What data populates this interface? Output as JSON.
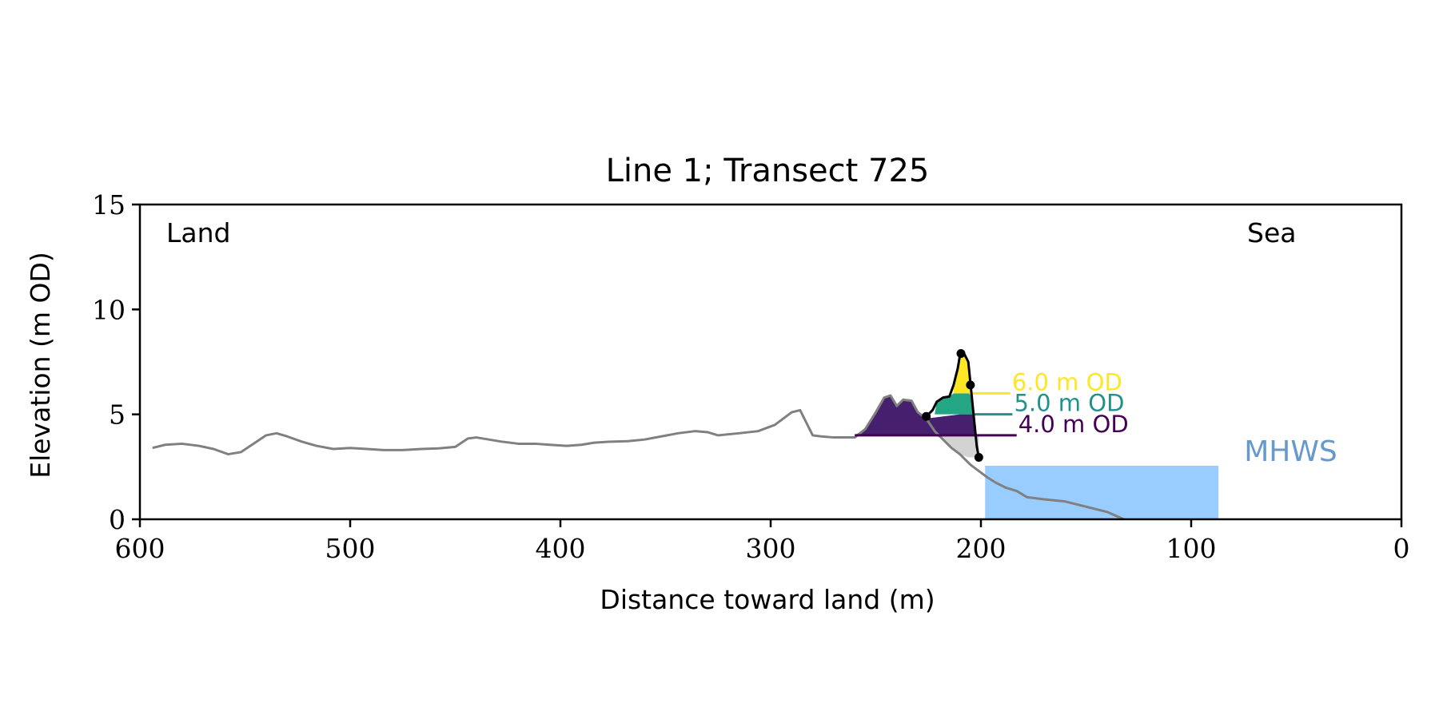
{
  "chart_data": {
    "type": "line",
    "title": "Line 1; Transect 725",
    "xlabel": "Distance toward land (m)",
    "ylabel": "Elevation (m OD)",
    "xlim": [
      600,
      0
    ],
    "ylim": [
      0,
      15
    ],
    "xticks": [
      600,
      500,
      400,
      300,
      200,
      100,
      0
    ],
    "yticks": [
      0,
      5,
      10,
      15
    ],
    "grid": false,
    "annotations": {
      "left": "Land",
      "right": "Sea"
    },
    "colors": {
      "profile": "#808080",
      "dune": "#000000",
      "level_6": "#fde725",
      "level_5": "#21918c",
      "level_4": "#440154",
      "mhws": "#99ccff",
      "mhws_label": "#6699cc",
      "toe_fill": "#d3d3d3"
    },
    "profile": {
      "x": [
        594,
        588,
        580,
        572,
        565,
        558,
        552,
        546,
        540,
        535,
        530,
        523,
        516,
        508,
        500,
        492,
        484,
        475,
        466,
        458,
        450,
        444,
        440,
        434,
        428,
        420,
        412,
        405,
        397,
        390,
        384,
        376,
        368,
        360,
        352,
        344,
        336,
        330,
        325,
        320,
        315,
        306,
        298,
        290,
        286,
        283,
        280,
        276,
        270,
        260,
        255,
        250,
        246,
        243,
        240,
        237,
        233,
        230,
        226,
        222,
        218,
        214,
        210,
        205,
        201,
        197,
        193,
        188,
        183,
        178,
        170,
        160,
        150,
        140,
        132
      ],
      "y": [
        3.4,
        3.55,
        3.6,
        3.5,
        3.35,
        3.1,
        3.2,
        3.6,
        4.0,
        4.1,
        3.95,
        3.7,
        3.5,
        3.35,
        3.4,
        3.35,
        3.3,
        3.3,
        3.35,
        3.38,
        3.45,
        3.85,
        3.9,
        3.8,
        3.7,
        3.6,
        3.6,
        3.55,
        3.5,
        3.55,
        3.65,
        3.7,
        3.72,
        3.8,
        3.95,
        4.1,
        4.2,
        4.15,
        4.0,
        4.05,
        4.1,
        4.2,
        4.5,
        5.1,
        5.2,
        4.6,
        4.0,
        3.95,
        3.9,
        3.9,
        4.3,
        5.1,
        5.8,
        5.9,
        5.4,
        5.7,
        5.65,
        5.1,
        4.8,
        4.2,
        3.8,
        3.4,
        3.1,
        2.6,
        2.3,
        2.0,
        1.75,
        1.5,
        1.35,
        1.05,
        0.95,
        0.85,
        0.6,
        0.35,
        0.0
      ]
    },
    "dune_line": {
      "x": [
        226,
        223,
        221,
        218,
        215,
        213,
        211,
        210,
        208,
        206,
        205,
        204,
        203,
        202,
        201
      ],
      "y": [
        4.9,
        5.2,
        5.6,
        5.8,
        5.85,
        6.4,
        7.2,
        7.8,
        7.9,
        7.5,
        6.5,
        5.5,
        4.5,
        3.5,
        2.95
      ]
    },
    "dune_points": [
      {
        "x": 226,
        "y": 4.9
      },
      {
        "x": 209.5,
        "y": 7.9
      },
      {
        "x": 205,
        "y": 6.4
      },
      {
        "x": 201,
        "y": 2.95
      }
    ],
    "levels": [
      {
        "label": "6.0 m OD",
        "value": 6.0,
        "x_start": 205.5,
        "x_end": 186
      },
      {
        "label": "5.0 m OD",
        "value": 5.0,
        "x_start": 204,
        "x_end": 185
      },
      {
        "label": "4.0 m OD",
        "value": 4.0,
        "x_start": 260,
        "x_end": 183
      }
    ],
    "level_fills": {
      "purple": {
        "x": [
          260,
          255,
          250,
          246,
          243,
          240,
          237,
          233,
          230,
          226,
          222,
          218,
          214,
          210,
          206,
          204,
          203
        ],
        "y": [
          4.0,
          4.3,
          5.1,
          5.8,
          5.9,
          5.4,
          5.7,
          5.65,
          5.1,
          4.8,
          4.85,
          4.9,
          4.95,
          5.0,
          5.0,
          5.0,
          4.5
        ],
        "base": 4.0
      },
      "green": {
        "x": [
          222,
          221,
          218,
          215,
          213,
          211,
          207,
          205,
          204
        ],
        "y": [
          5.0,
          5.6,
          5.8,
          5.85,
          6.0,
          6.0,
          6.0,
          6.0,
          5.5
        ],
        "base": 5.0
      },
      "yellow": {
        "x": [
          213,
          211,
          210,
          208,
          206,
          205
        ],
        "y": [
          6.4,
          7.2,
          7.8,
          7.9,
          7.5,
          6.5
        ],
        "base": 6.0
      },
      "toe": {
        "x": [
          222,
          218,
          214,
          210,
          206,
          203,
          201
        ],
        "y": [
          4.0,
          3.8,
          3.4,
          3.1,
          2.95,
          2.95,
          2.95
        ],
        "base_to_level": 4.0
      }
    },
    "mhws": {
      "label": "MHWS",
      "value": 2.55,
      "x_start": 198,
      "x_end": 87
    }
  }
}
